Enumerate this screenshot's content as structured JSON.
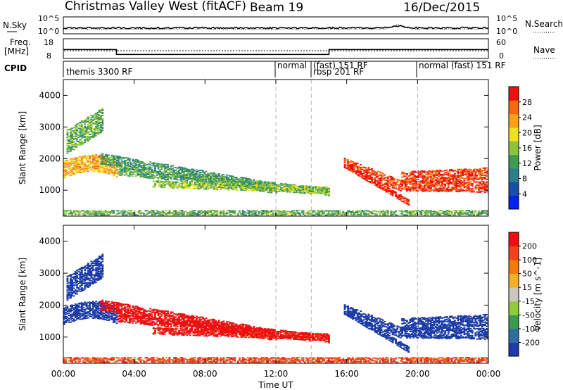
{
  "header": {
    "station": "Christmas Valley West (fitACF)",
    "beam": "Beam 19",
    "date": "16/Dec/2015"
  },
  "side_labels": {
    "nsky": "N.Sky",
    "nsky_ticks": [
      "10^5",
      "10^0"
    ],
    "nsearch": "N.Search",
    "nsearch_ticks": [
      "10^5",
      "10^0"
    ],
    "freq": "Freq.",
    "freq_unit": "[MHz]",
    "freq_ticks": [
      "18",
      "8"
    ],
    "nave": "Nave",
    "nave_ticks": [
      "60",
      "0"
    ],
    "cpid": "CPID"
  },
  "cpid_labels": [
    {
      "text": "themis 3300 RF",
      "row": 2
    },
    {
      "text": "normal",
      "row": 1
    },
    {
      "text": "(fast) 151 RF",
      "row": 1
    },
    {
      "text": "rbsp 201 RF",
      "row": 2
    },
    {
      "text": "normal (fast) 151 RF",
      "row": 1
    }
  ],
  "chart_data": [
    {
      "type": "heatmap",
      "panel": "power",
      "xlabel": "Time UT",
      "ylabel": "Slant Range [km]",
      "colorbar_label": "Power [dB]",
      "colorbar_ticks": [
        "28",
        "24",
        "20",
        "16",
        "12",
        "8",
        "4"
      ],
      "colorbar_range": [
        0,
        30
      ],
      "colors": [
        "#0022ee",
        "#1a4fa8",
        "#2a7f8a",
        "#3f9a52",
        "#8cc43f",
        "#f0e020",
        "#f7a21a",
        "#f56a10",
        "#ee1010"
      ],
      "x_ticks": [
        "00:00",
        "04:00",
        "08:00",
        "12:00",
        "16:00",
        "20:00",
        "00:00"
      ],
      "x_range_hours": [
        0,
        24
      ],
      "y_ticks": [
        "4000",
        "3000",
        "2000",
        "1000"
      ],
      "y_range_km": [
        180,
        4500
      ],
      "mode_change_lines_hours": [
        12,
        14,
        20
      ]
    },
    {
      "type": "heatmap",
      "panel": "velocity",
      "xlabel": "Time UT",
      "ylabel": "Slant Range [km]",
      "colorbar_label": "Velocity [m s^-1]",
      "colorbar_ticks": [
        "200",
        "100",
        "50",
        "15",
        "-15",
        "-50",
        "-100",
        "-200"
      ],
      "colorbar_range": [
        -250,
        250
      ],
      "colors": [
        "#ee1010",
        "#f0441a",
        "#f07c10",
        "#f2b02a",
        "#c8c8c0",
        "#8fcc3a",
        "#3a9a52",
        "#2a6fa0",
        "#1c3ca8"
      ],
      "x_ticks": [
        "00:00",
        "04:00",
        "08:00",
        "12:00",
        "16:00",
        "20:00",
        "00:00"
      ],
      "x_range_hours": [
        0,
        24
      ],
      "y_ticks": [
        "4000",
        "3000",
        "2000",
        "1000"
      ],
      "y_range_km": [
        180,
        4500
      ],
      "mode_change_lines_hours": [
        12,
        14,
        20
      ]
    }
  ],
  "frequency_trace_mhz": [
    [
      0,
      12.5
    ],
    [
      3,
      12.5
    ],
    [
      3,
      10
    ],
    [
      15,
      10
    ],
    [
      15,
      12.5
    ],
    [
      24,
      12.5
    ]
  ]
}
